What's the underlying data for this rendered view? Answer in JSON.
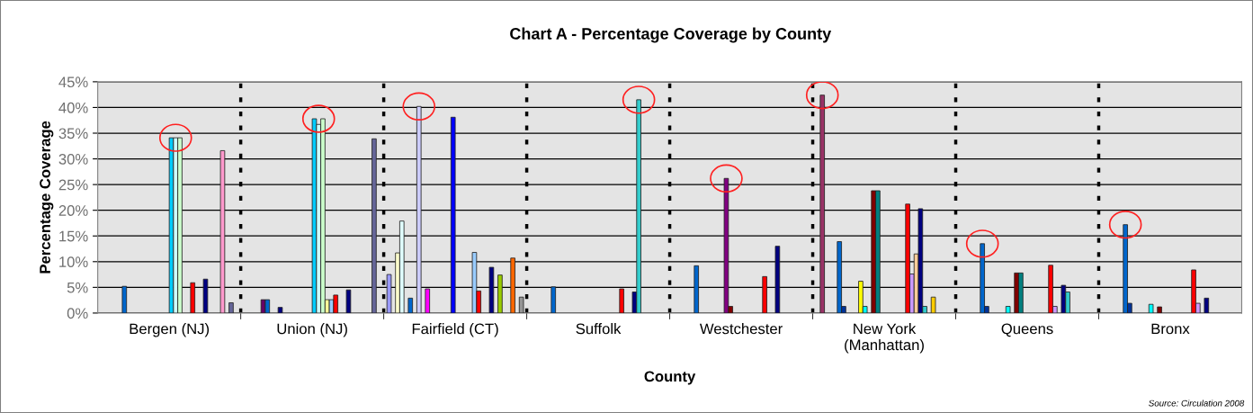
{
  "chart_data": {
    "type": "bar",
    "title": "Chart A - Percentage Coverage by County",
    "xlabel": "County",
    "ylabel": "Percentage Coverage",
    "categories": [
      "Bergen (NJ)",
      "Union (NJ)",
      "Fairfield (CT)",
      "Suffolk",
      "Westchester",
      "New York\n(Manhattan)",
      "Queens",
      "Bronx"
    ],
    "ylim": [
      0,
      45
    ],
    "yticks": [
      {
        "value": 0,
        "label": "0%"
      },
      {
        "value": 5,
        "label": "5%"
      },
      {
        "value": 10,
        "label": "10%"
      },
      {
        "value": 15,
        "label": "15%"
      },
      {
        "value": 20,
        "label": "20%"
      },
      {
        "value": 25,
        "label": "25%"
      },
      {
        "value": 30,
        "label": "30%"
      },
      {
        "value": 35,
        "label": "35%"
      },
      {
        "value": 40,
        "label": "40%"
      },
      {
        "value": 45,
        "label": "45%"
      }
    ],
    "grid": true,
    "legend": false,
    "annotations": [
      "Source: Circulation 2008"
    ],
    "series": [
      {
        "color": "#9999ff",
        "values": [
          null,
          null,
          7.5,
          null,
          null,
          null,
          null,
          null
        ]
      },
      {
        "color": "#993366",
        "values": [
          null,
          null,
          null,
          null,
          null,
          42.4,
          null,
          null
        ]
      },
      {
        "color": "#ffffcc",
        "values": [
          null,
          null,
          11.7,
          null,
          null,
          null,
          null,
          null
        ]
      },
      {
        "color": "#e0ffff",
        "values": [
          null,
          null,
          17.9,
          null,
          null,
          null,
          null,
          null
        ]
      },
      {
        "color": "#660066",
        "values": [
          null,
          2.6,
          null,
          null,
          null,
          null,
          null,
          null
        ]
      },
      {
        "color": "#0066cc",
        "values": [
          5.2,
          2.6,
          2.9,
          5.1,
          9.2,
          13.9,
          13.5,
          17.2
        ]
      },
      {
        "color": "#003399",
        "values": [
          null,
          null,
          null,
          null,
          null,
          1.3,
          1.3,
          1.9
        ]
      },
      {
        "color": "#ccccff",
        "values": [
          null,
          null,
          40.2,
          null,
          null,
          null,
          null,
          null
        ]
      },
      {
        "color": "#000080",
        "values": [
          null,
          1.1,
          null,
          null,
          null,
          null,
          null,
          null
        ]
      },
      {
        "color": "#ff00ff",
        "values": [
          null,
          null,
          4.7,
          null,
          null,
          null,
          null,
          null
        ]
      },
      {
        "color": "#ffff00",
        "values": [
          null,
          null,
          null,
          null,
          null,
          6.2,
          null,
          null
        ]
      },
      {
        "color": "#00ffff",
        "values": [
          null,
          null,
          null,
          null,
          null,
          1.3,
          1.3,
          1.7
        ]
      },
      {
        "color": "#800080",
        "values": [
          null,
          null,
          null,
          null,
          26.2,
          null,
          null,
          null
        ]
      },
      {
        "color": "#800000",
        "values": [
          null,
          null,
          null,
          null,
          1.3,
          23.8,
          7.8,
          1.2
        ]
      },
      {
        "color": "#008080",
        "values": [
          null,
          null,
          null,
          null,
          null,
          23.8,
          7.8,
          null
        ]
      },
      {
        "color": "#0000ff",
        "values": [
          null,
          null,
          38.1,
          null,
          null,
          null,
          null,
          null
        ]
      },
      {
        "color": "#00ccff",
        "values": [
          34.1,
          37.8,
          null,
          null,
          null,
          null,
          null,
          null
        ]
      },
      {
        "color": "#ccffff",
        "values": [
          34.1,
          36.7,
          null,
          null,
          null,
          null,
          null,
          null
        ]
      },
      {
        "color": "#ccffcc",
        "values": [
          34.1,
          37.8,
          null,
          null,
          null,
          null,
          null,
          null
        ]
      },
      {
        "color": "#ffff99",
        "values": [
          null,
          2.6,
          null,
          null,
          null,
          null,
          null,
          null
        ]
      },
      {
        "color": "#99ccff",
        "values": [
          null,
          2.6,
          11.8,
          null,
          null,
          null,
          null,
          null
        ]
      },
      {
        "color": "#ff0000",
        "values": [
          5.9,
          3.5,
          4.3,
          4.7,
          7.1,
          21.2,
          9.3,
          8.4
        ]
      },
      {
        "color": "#cc99ff",
        "values": [
          null,
          null,
          null,
          null,
          null,
          7.6,
          1.3,
          1.9
        ]
      },
      {
        "color": "#ffcc99",
        "values": [
          null,
          null,
          null,
          null,
          null,
          11.5,
          null,
          null
        ]
      },
      {
        "color": "#000080",
        "values": [
          6.6,
          4.5,
          8.9,
          4.1,
          13.0,
          20.3,
          5.4,
          2.9
        ]
      },
      {
        "color": "#33cccc",
        "values": [
          null,
          null,
          null,
          41.5,
          null,
          1.3,
          4.1,
          null
        ]
      },
      {
        "color": "#99cc00",
        "values": [
          null,
          null,
          7.4,
          null,
          null,
          null,
          null,
          null
        ]
      },
      {
        "color": "#ffcc00",
        "values": [
          null,
          null,
          null,
          null,
          null,
          3.1,
          null,
          null
        ]
      },
      {
        "color": "#ff99cc",
        "values": [
          31.6,
          null,
          null,
          null,
          null,
          null,
          null,
          null
        ]
      },
      {
        "color": "#ff6600",
        "values": [
          null,
          null,
          10.7,
          null,
          null,
          null,
          null,
          null
        ]
      },
      {
        "color": "#666699",
        "values": [
          2.0,
          33.9,
          null,
          null,
          null,
          null,
          null,
          null
        ]
      },
      {
        "color": "#969696",
        "values": [
          null,
          null,
          3.1,
          null,
          null,
          null,
          null,
          null
        ]
      }
    ]
  }
}
